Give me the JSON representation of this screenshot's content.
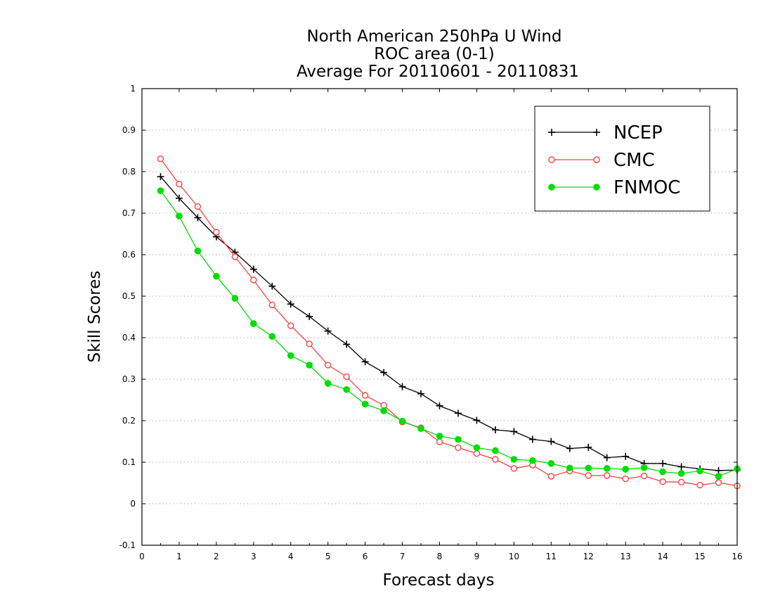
{
  "chart_data": {
    "type": "line",
    "title": "North American 250hPa U Wind",
    "subtitle": "ROC area (0-1)",
    "subtitle2": "Average For 20110601 - 20110831",
    "xlabel": "Forecast days",
    "ylabel": "Skill Scores",
    "xlim": [
      0,
      16
    ],
    "ylim": [
      -0.1,
      1
    ],
    "x_ticks": [
      "0",
      "1",
      "2",
      "3",
      "4",
      "5",
      "6",
      "7",
      "8",
      "9",
      "10",
      "11",
      "12",
      "13",
      "14",
      "15",
      "16"
    ],
    "y_ticks": [
      "-0.1",
      "0",
      "0.1",
      "0.2",
      "0.3",
      "0.4",
      "0.5",
      "0.6",
      "0.7",
      "0.8",
      "0.9",
      "1"
    ],
    "grid": true,
    "legend_position": "top-right",
    "x": [
      0.5,
      1,
      1.5,
      2,
      2.5,
      3,
      3.5,
      4,
      4.5,
      5,
      5.5,
      6,
      6.5,
      7,
      7.5,
      8,
      8.5,
      9,
      9.5,
      10,
      10.5,
      11,
      11.5,
      12,
      12.5,
      13,
      13.5,
      14,
      14.5,
      15,
      15.5,
      16
    ],
    "series": [
      {
        "name": "NCEP",
        "color": "#000000",
        "marker": "plus",
        "values": [
          0.788,
          0.736,
          0.689,
          0.643,
          0.606,
          0.565,
          0.524,
          0.481,
          0.451,
          0.416,
          0.384,
          0.342,
          0.316,
          0.282,
          0.265,
          0.236,
          0.218,
          0.201,
          0.178,
          0.174,
          0.155,
          0.15,
          0.133,
          0.136,
          0.111,
          0.114,
          0.097,
          0.097,
          0.089,
          0.084,
          0.08,
          0.081
        ]
      },
      {
        "name": "CMC",
        "color": "#ff4040",
        "marker": "open-circle",
        "values": [
          0.831,
          0.77,
          0.716,
          0.654,
          0.595,
          0.539,
          0.479,
          0.429,
          0.385,
          0.334,
          0.306,
          0.261,
          0.237,
          0.197,
          0.183,
          0.149,
          0.135,
          0.121,
          0.107,
          0.085,
          0.093,
          0.066,
          0.079,
          0.068,
          0.068,
          0.06,
          0.067,
          0.053,
          0.052,
          0.045,
          0.051,
          0.043
        ]
      },
      {
        "name": "FNMOC",
        "color": "#00dd00",
        "marker": "filled-circle",
        "values": [
          0.754,
          0.693,
          0.609,
          0.548,
          0.495,
          0.434,
          0.403,
          0.357,
          0.334,
          0.29,
          0.275,
          0.24,
          0.224,
          0.199,
          0.181,
          0.163,
          0.155,
          0.135,
          0.128,
          0.107,
          0.104,
          0.097,
          0.086,
          0.086,
          0.085,
          0.083,
          0.087,
          0.077,
          0.073,
          0.079,
          0.066,
          0.084
        ]
      }
    ]
  }
}
